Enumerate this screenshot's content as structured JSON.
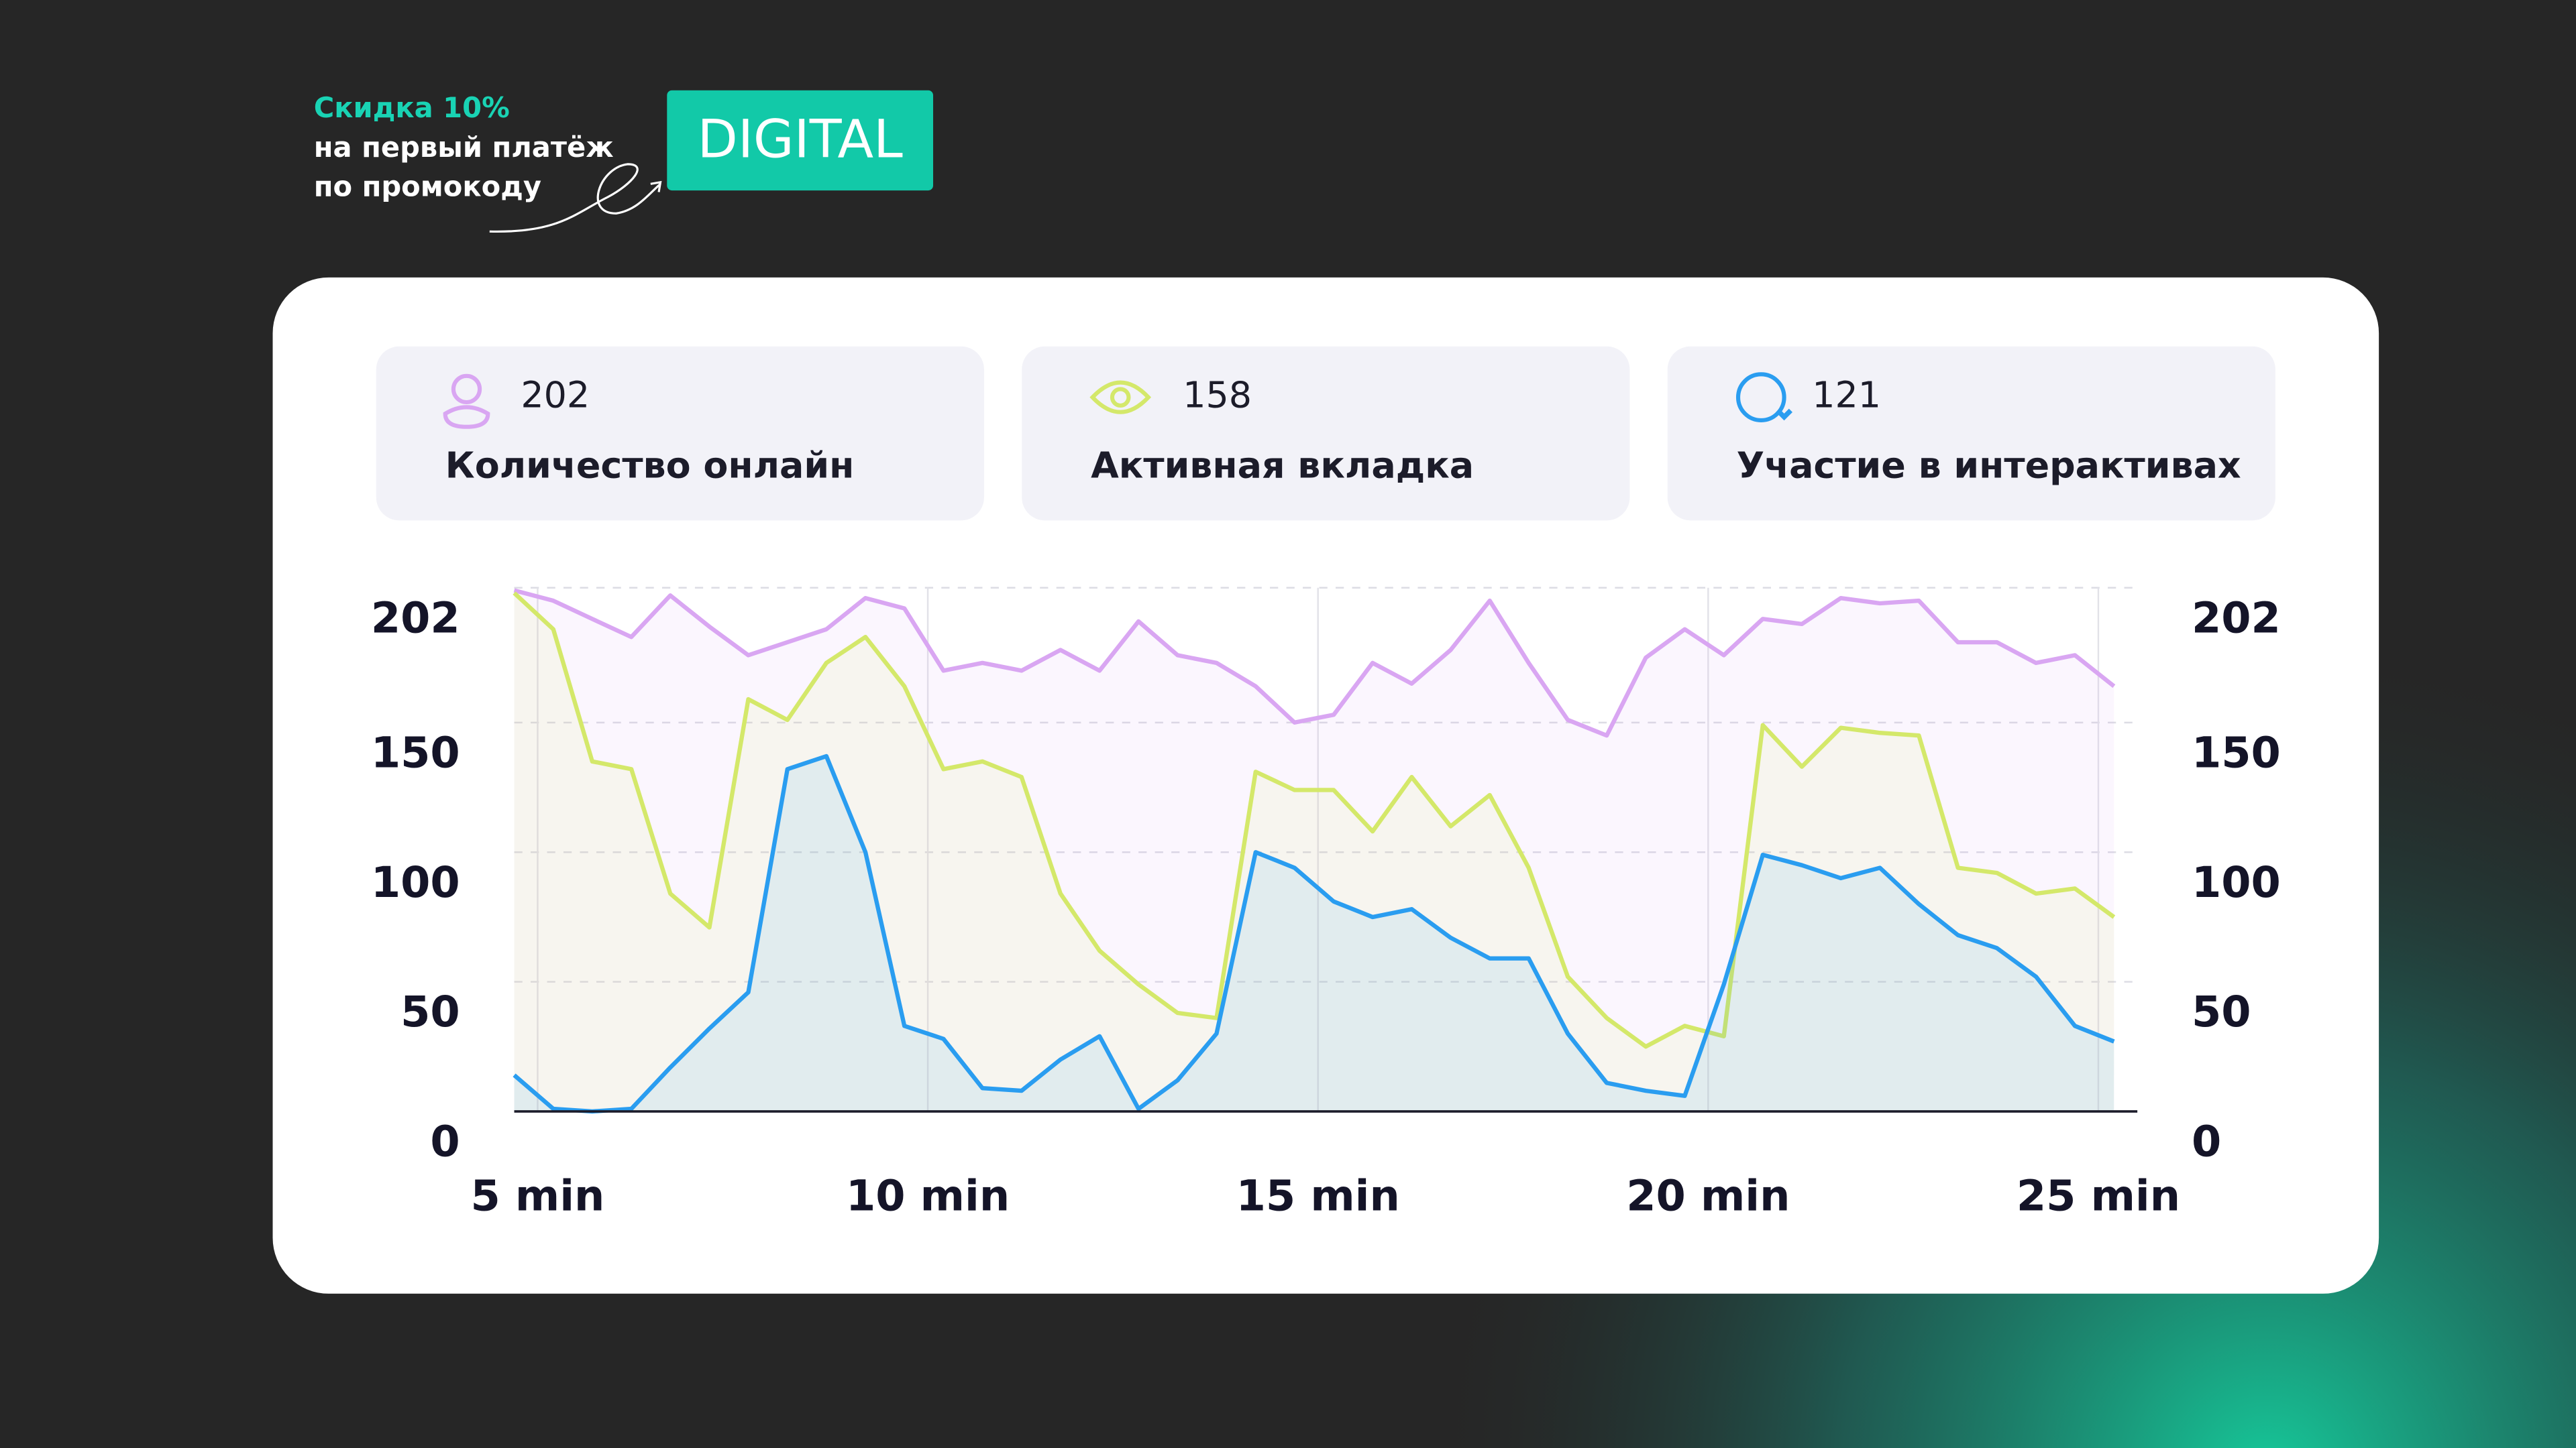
{
  "promo": {
    "line1": "Скидка 10%",
    "line2": "на первый платёж",
    "line3": "по промокоду",
    "code": "DIGITAL"
  },
  "cards": [
    {
      "value": 202,
      "label": "Количество онлайн"
    },
    {
      "value": 158,
      "label": "Активная вкладка"
    },
    {
      "value": 121,
      "label": "Участие в интерактивах"
    }
  ],
  "chart_data": {
    "type": "line",
    "x": [
      4.7,
      5.2,
      5.7,
      6.2,
      6.7,
      7.2,
      7.7,
      8.2,
      8.7,
      9.2,
      9.7,
      10.2,
      10.7,
      11.2,
      11.7,
      12.2,
      12.7,
      13.2,
      13.7,
      14.2,
      14.7,
      15.2,
      15.7,
      16.2,
      16.7,
      17.2,
      17.7,
      18.2,
      18.7,
      19.2,
      19.7,
      20.2,
      20.7,
      21.2,
      21.7,
      22.2,
      22.7,
      23.2,
      23.7,
      24.2,
      24.7,
      25.2
    ],
    "series": [
      {
        "color": "#d9a6f2",
        "values": [
          201,
          197,
          190,
          183,
          199,
          187,
          176,
          181,
          186,
          198,
          194,
          170,
          173,
          170,
          178,
          170,
          189,
          176,
          173,
          164,
          150,
          153,
          173,
          165,
          178,
          197,
          173,
          151,
          145,
          175,
          186,
          176,
          190,
          188,
          198,
          196,
          197,
          181,
          181,
          173,
          176,
          164
        ]
      },
      {
        "color": "#d4e86a",
        "values": [
          200,
          186,
          135,
          132,
          84,
          71,
          159,
          151,
          173,
          183,
          164,
          132,
          135,
          129,
          84,
          62,
          49,
          38,
          36,
          131,
          124,
          124,
          108,
          129,
          110,
          122,
          94,
          52,
          36,
          25,
          33,
          29,
          149,
          133,
          148,
          146,
          145,
          94,
          92,
          84,
          86,
          75
        ]
      },
      {
        "color": "#2a9df0",
        "values": [
          14,
          1,
          0,
          1,
          17,
          32,
          46,
          132,
          137,
          100,
          33,
          28,
          9,
          8,
          20,
          29,
          1,
          12,
          30,
          100,
          94,
          81,
          75,
          78,
          67,
          59,
          59,
          30,
          11,
          8,
          6,
          49,
          99,
          95,
          90,
          94,
          80,
          68,
          63,
          52,
          33,
          27
        ]
      }
    ],
    "xlim": [
      4.7,
      25.5
    ],
    "ylim": [
      0,
      202
    ],
    "xticks": [
      {
        "value": 5,
        "label": "5 min"
      },
      {
        "value": 10,
        "label": "10 min"
      },
      {
        "value": 15,
        "label": "15 min"
      },
      {
        "value": 20,
        "label": "20 min"
      },
      {
        "value": 25,
        "label": "25 min"
      }
    ],
    "yticks": [
      0,
      50,
      100,
      150,
      202
    ],
    "grid": true
  }
}
